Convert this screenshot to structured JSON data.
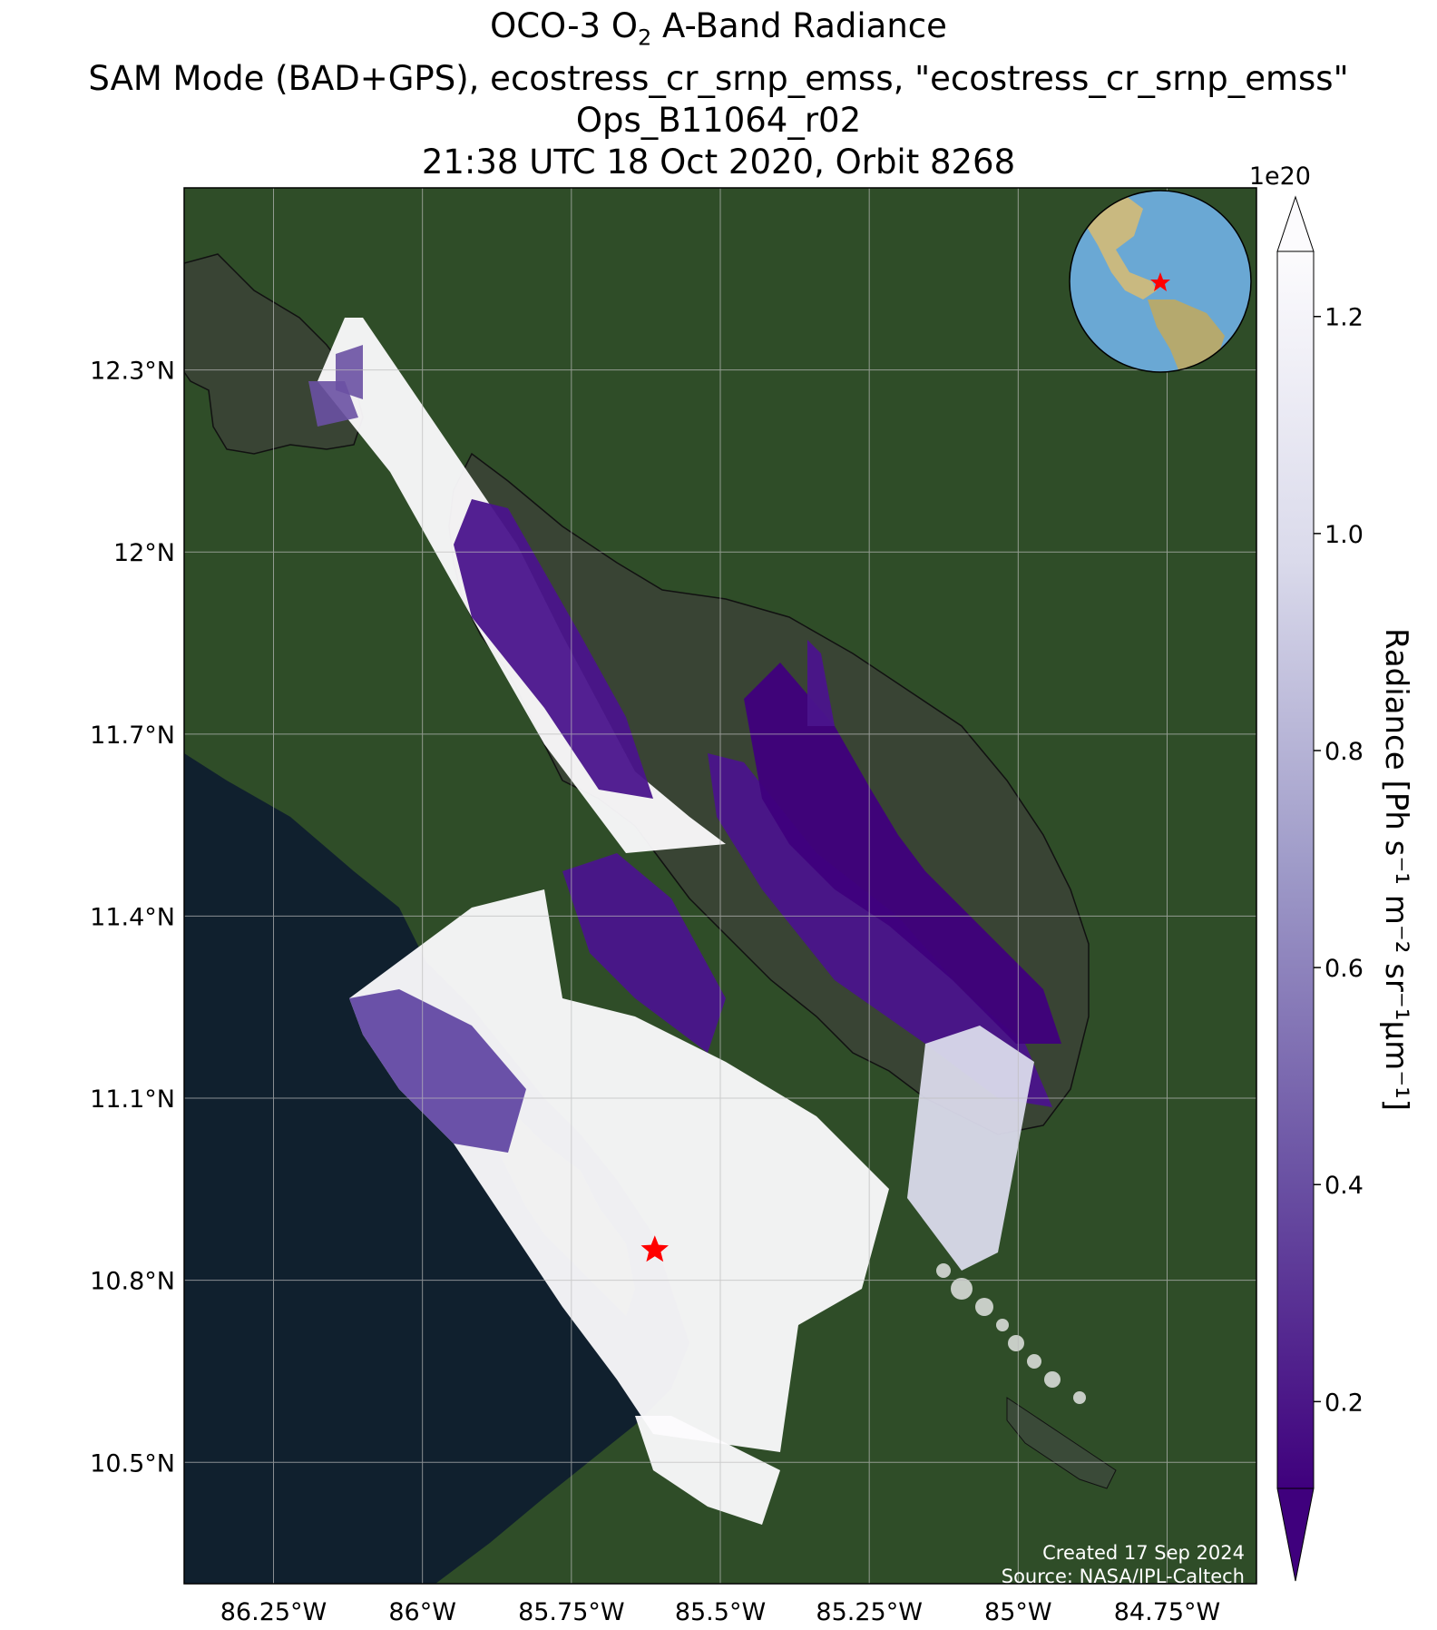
{
  "title": {
    "line1_main": "OCO-3 O",
    "line1_sub": "2",
    "line1_rest": " A-Band Radiance",
    "line2": "SAM Mode (BAD+GPS), ecostress_cr_srnp_emss, \"ecostress_cr_srnp_emss\"",
    "line3": "Ops_B11064_r02",
    "line4": "21:38 UTC 18 Oct 2020, Orbit 8268"
  },
  "map": {
    "lat_ticks": [
      "12.3°N",
      "12°N",
      "11.7°N",
      "11.4°N",
      "11.1°N",
      "10.8°N",
      "10.5°N"
    ],
    "lon_ticks": [
      "86.25°W",
      "86°W",
      "85.75°W",
      "85.5°W",
      "85.25°W",
      "85°W",
      "84.75°W"
    ],
    "lat_values": [
      12.3,
      12.0,
      11.7,
      11.4,
      11.1,
      10.8,
      10.5
    ],
    "lon_values": [
      -86.25,
      -86.0,
      -85.75,
      -85.5,
      -85.25,
      -85.0,
      -84.75
    ],
    "extent": {
      "lon_min": -86.4,
      "lon_max": -84.6,
      "lat_min": 10.3,
      "lat_max": 12.6
    },
    "target_marker": {
      "lon": -85.61,
      "lat": 10.85,
      "color": "#ff0000"
    },
    "credit_line1": "Created 17 Sep 2024",
    "credit_line2": "Source: NASA/JPL-Caltech",
    "inset_globe": {
      "marker_color": "#ff0000",
      "region": "Central America"
    }
  },
  "colorbar": {
    "exponent": "1e20",
    "label_main": "Radiance [Ph s",
    "label_full": "Radiance [Ph s⁻¹ m⁻² sr⁻¹μm⁻¹]",
    "ticks": [
      "0.2",
      "0.4",
      "0.6",
      "0.8",
      "1.0",
      "1.2"
    ],
    "tick_values": [
      0.2,
      0.4,
      0.6,
      0.8,
      1.0,
      1.2
    ],
    "range": [
      0.12,
      1.26
    ],
    "colormap": "Purples_r",
    "color_low": "#3f007d",
    "color_high": "#fcfbfd"
  },
  "colors": {
    "land": "#2f4a26",
    "ocean": "#10202e",
    "lake": "#3a4636"
  }
}
